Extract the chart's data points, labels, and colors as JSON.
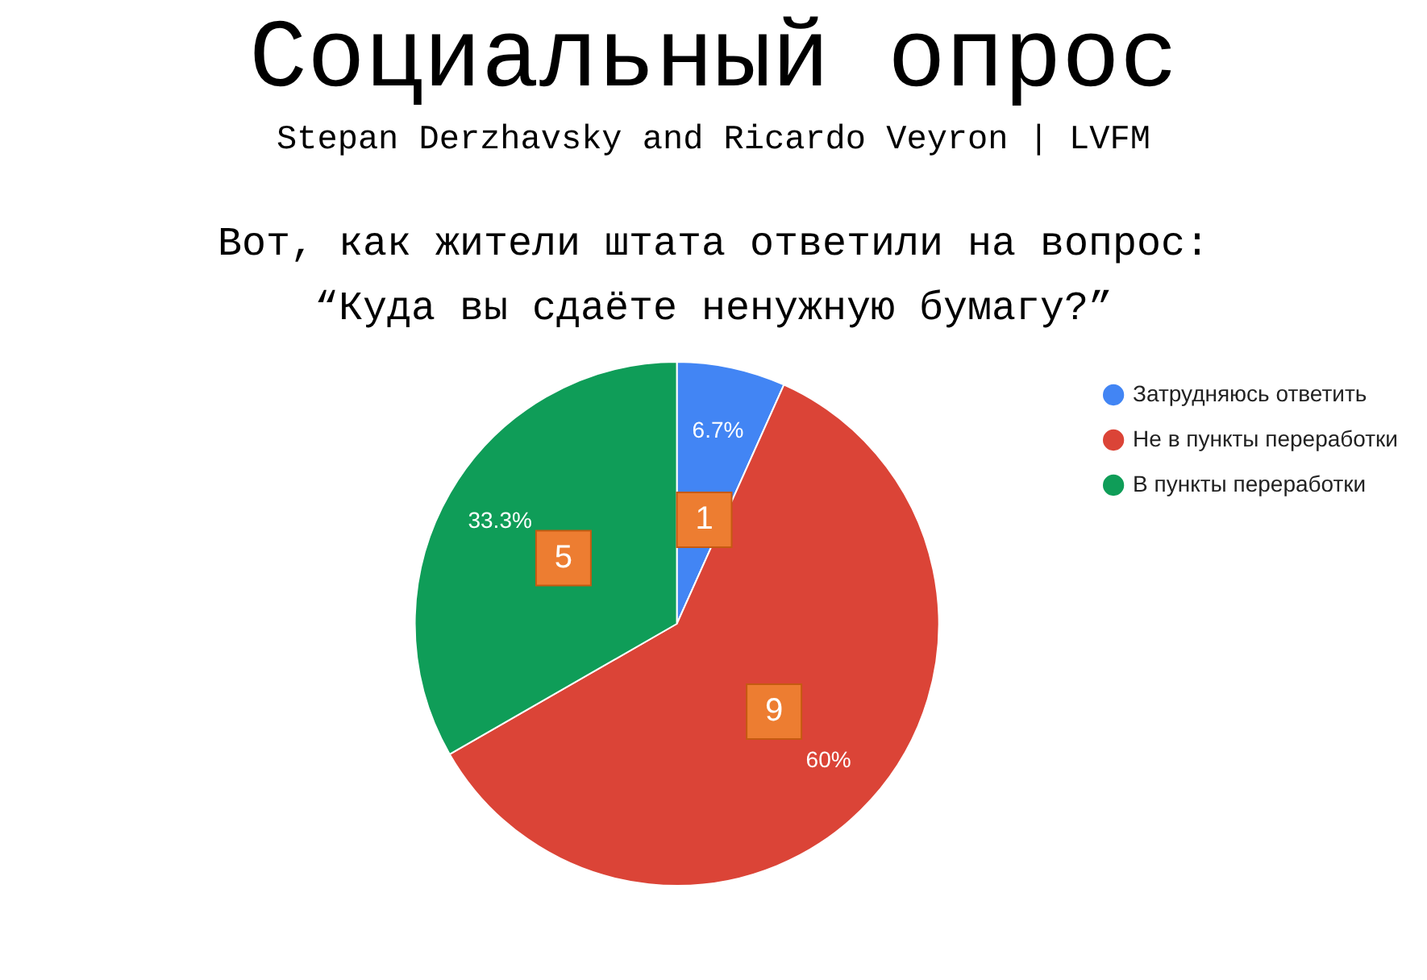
{
  "chart_data": {
    "type": "pie",
    "title": "Социальный опрос",
    "subtitle": "Stepan Derzhavsky and Ricardo Veyron | LVFM",
    "annotations": [
      "Вот, как жители штата ответили на вопрос:",
      "“Куда вы сдаёте ненужную бумагу?”",
      {
        "text": "1",
        "x": "Затрудняюсь ответить"
      },
      {
        "text": "9",
        "x": "Не в пункты переработки"
      },
      {
        "text": "5",
        "x": "В пункты переработки"
      }
    ],
    "categories": [
      "Затрудняюсь ответить",
      "Не в пункты переработки",
      "В пункты переработки"
    ],
    "values": [
      6.7,
      60,
      33.3
    ],
    "colors": [
      "#4285f4",
      "#db4437",
      "#0f9d58"
    ],
    "value_labels": [
      "6.7%",
      "60%",
      "33.3%"
    ],
    "legend": "top right"
  }
}
